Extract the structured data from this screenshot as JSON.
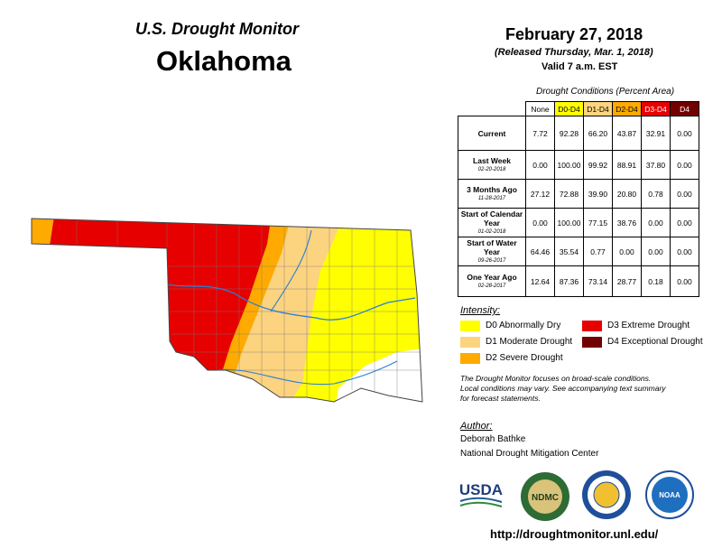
{
  "header": {
    "agency": "U.S. Drought Monitor",
    "state": "Oklahoma",
    "date": "February 27, 2018",
    "released": "(Released Thursday, Mar. 1, 2018)",
    "valid": "Valid 7 a.m. EST"
  },
  "table": {
    "caption": "Drought Conditions (Percent Area)",
    "columns": [
      {
        "label": "None",
        "color": "#ffffff",
        "text": "#000000"
      },
      {
        "label": "D0-D4",
        "color": "#ffff00",
        "text": "#000000"
      },
      {
        "label": "D1-D4",
        "color": "#fcd37f",
        "text": "#000000"
      },
      {
        "label": "D2-D4",
        "color": "#ffaa00",
        "text": "#000000"
      },
      {
        "label": "D3-D4",
        "color": "#e60000",
        "text": "#ffffff"
      },
      {
        "label": "D4",
        "color": "#730000",
        "text": "#ffffff"
      }
    ],
    "rows": [
      {
        "label": "Current",
        "values": [
          "7.72",
          "92.28",
          "66.20",
          "43.87",
          "32.91",
          "0.00"
        ]
      },
      {
        "label": "Last Week",
        "date": "02-20-2018",
        "values": [
          "0.00",
          "100.00",
          "99.92",
          "88.91",
          "37.80",
          "0.00"
        ]
      },
      {
        "label": "3 Months Ago",
        "date": "11-28-2017",
        "values": [
          "27.12",
          "72.88",
          "39.90",
          "20.80",
          "0.78",
          "0.00"
        ]
      },
      {
        "label": "Start of Calendar Year",
        "date": "01-02-2018",
        "values": [
          "0.00",
          "100.00",
          "77.15",
          "38.76",
          "0.00",
          "0.00"
        ]
      },
      {
        "label": "Start of Water Year",
        "date": "09-26-2017",
        "values": [
          "64.46",
          "35.54",
          "0.77",
          "0.00",
          "0.00",
          "0.00"
        ]
      },
      {
        "label": "One Year Ago",
        "date": "02-28-2017",
        "values": [
          "12.64",
          "87.36",
          "73.14",
          "28.77",
          "0.18",
          "0.00"
        ]
      }
    ]
  },
  "legend": {
    "title": "Intensity:",
    "items": [
      {
        "label": "D0 Abnormally Dry",
        "color": "#ffff00"
      },
      {
        "label": "D1 Moderate Drought",
        "color": "#fcd37f"
      },
      {
        "label": "D2 Severe Drought",
        "color": "#ffaa00"
      },
      {
        "label": "D3 Extreme Drought",
        "color": "#e60000"
      },
      {
        "label": "D4 Exceptional Drought",
        "color": "#730000"
      }
    ]
  },
  "note": [
    "The Drought Monitor focuses on broad-scale conditions.",
    "Local conditions may vary. See accompanying text summary",
    "for forecast statements."
  ],
  "author": {
    "heading": "Author:",
    "name": "Deborah Bathke",
    "org": "National Drought Mitigation Center"
  },
  "logos": {
    "usda": "USDA",
    "ndmc": "NDMC",
    "noaa": "NOAA"
  },
  "url": "http://droughtmonitor.unl.edu/"
}
